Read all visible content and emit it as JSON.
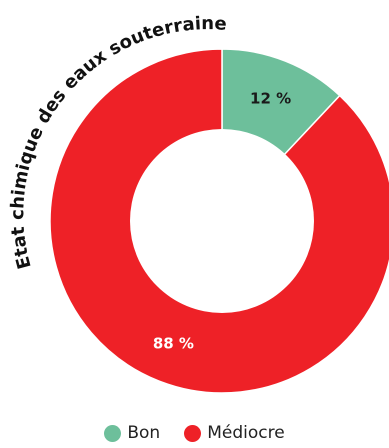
{
  "chart_data": {
    "type": "pie",
    "title": "Etat chimique des eaux souterraines",
    "categories": [
      "Bon",
      "Médiocre"
    ],
    "values": [
      12,
      88
    ],
    "labels": [
      "12 %",
      "88 %"
    ],
    "colors": [
      "#6dbf9b",
      "#ee2127"
    ],
    "donut": true,
    "legend_position": "bottom"
  },
  "legend": {
    "items": [
      {
        "label": "Bon",
        "color": "#6dbf9b"
      },
      {
        "label": "Médiocre",
        "color": "#ee2127"
      }
    ]
  }
}
